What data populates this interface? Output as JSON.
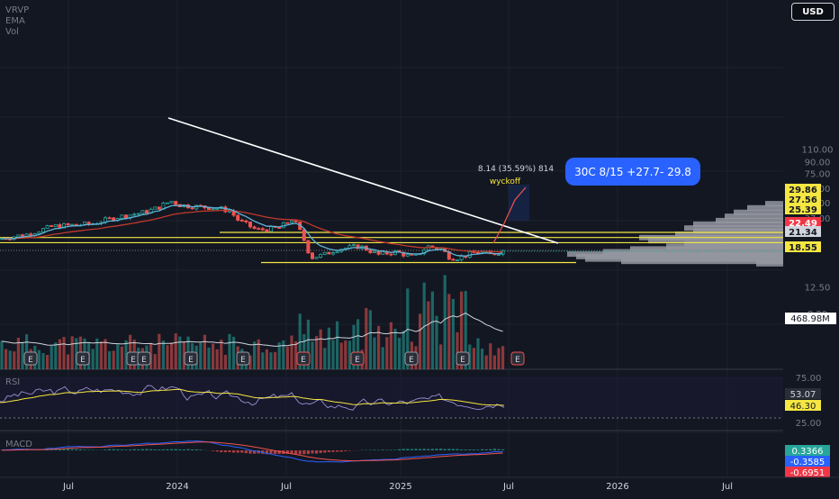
{
  "indicators": {
    "vrvp": "VRVP",
    "ema": "EMA",
    "vol": "Vol"
  },
  "currency": "USD",
  "price_axis": {
    "ticks": [
      "110.00",
      "90.00",
      "75.00",
      "59.00",
      "47.00",
      "37.00",
      "12.50",
      "8.20"
    ]
  },
  "price_labels": [
    {
      "text": "29.86",
      "bg": "#f5e642",
      "fg": "#131722",
      "y": 29.86
    },
    {
      "text": "27.56",
      "bg": "#f5e642",
      "fg": "#131722",
      "y": 27.56
    },
    {
      "text": "25.39",
      "bg": "#f5e642",
      "fg": "#131722",
      "y": 25.39
    },
    {
      "text": "22.49",
      "bg": "#f23645",
      "fg": "#ffffff",
      "y": 22.49
    },
    {
      "text": "21.34",
      "bg": "#d1d4dc",
      "fg": "#131722",
      "y": 21.34
    },
    {
      "text": "18.55",
      "bg": "#f5e642",
      "fg": "#131722",
      "y": 18.55
    }
  ],
  "volume_label": {
    "text": "468.98M"
  },
  "rsi": {
    "label": "RSI",
    "ticks": [
      "75.00",
      "25.00"
    ],
    "values": [
      {
        "text": "53.07",
        "bg": "#2a2e39",
        "fg": "#d1d4dc"
      },
      {
        "text": "46.30",
        "bg": "#f5e642",
        "fg": "#131722"
      }
    ]
  },
  "macd": {
    "label": "MACD",
    "values": [
      {
        "text": "0.3366",
        "bg": "#26a69a",
        "fg": "#ffffff"
      },
      {
        "text": "-0.3585",
        "bg": "#2962ff",
        "fg": "#ffffff"
      },
      {
        "text": "-0.6951",
        "bg": "#f23645",
        "fg": "#ffffff"
      }
    ]
  },
  "time_axis": [
    "Jul",
    "2024",
    "Jul",
    "2025",
    "Jul",
    "2026",
    "Jul"
  ],
  "annotations": {
    "measure": "8.14 (35.59%) 814",
    "wyckoff": "wyckoff",
    "callout": "30C 8/15 +27.7- 29.8"
  },
  "earnings_marker": "E",
  "colors": {
    "up": "#26a69a",
    "down": "#ef5350",
    "yellow": "#f5e642",
    "ema_fast": "#5fb3d8",
    "ema_slow": "#c0392b",
    "callout": "#2962ff"
  },
  "chart_data": {
    "type": "candlestick",
    "x": [
      "2023-05",
      "2023-06",
      "2023-07",
      "2023-08",
      "2023-09",
      "2023-10",
      "2023-11",
      "2023-12",
      "2024-01",
      "2024-02",
      "2024-03",
      "2024-04",
      "2024-05",
      "2024-06",
      "2024-07",
      "2024-08",
      "2024-09",
      "2024-10",
      "2024-11",
      "2024-12",
      "2025-01",
      "2025-02",
      "2025-03",
      "2025-04",
      "2025-05",
      "2025-06",
      "2025-07"
    ],
    "close": [
      27,
      30,
      33,
      31,
      35,
      36,
      40,
      44,
      49,
      46,
      45,
      42,
      33,
      32,
      33,
      20,
      21,
      24,
      22,
      23,
      22,
      25,
      20,
      21,
      22,
      21,
      22.5
    ],
    "levels": [
      29.86,
      27.56,
      25.39,
      18.55
    ],
    "y_axis_scale": "log"
  }
}
